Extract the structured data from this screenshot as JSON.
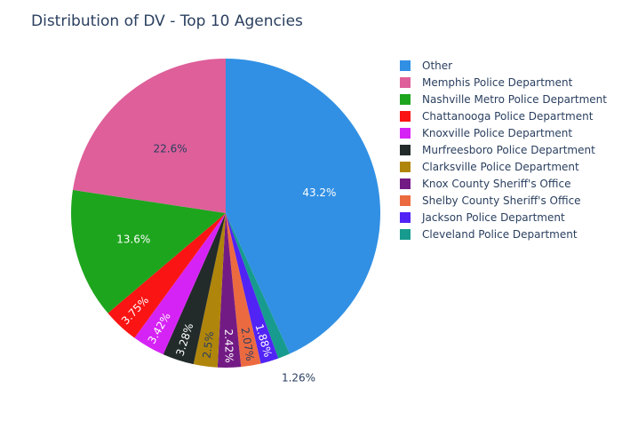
{
  "chart_data": {
    "type": "pie",
    "title": "Distribution of DV - Top 10 Agencies",
    "slices": [
      {
        "name": "Other",
        "value": 43.2,
        "label": "43.2%",
        "color": "#3190e4",
        "text_color": "#ffffff"
      },
      {
        "name": "Cleveland Police Department",
        "value": 1.26,
        "label": "1.26%",
        "color": "#179b8e",
        "text_color": "#2a3f5f"
      },
      {
        "name": "Jackson Police Department",
        "value": 1.88,
        "label": "1.88%",
        "color": "#5123f5",
        "text_color": "#ffffff"
      },
      {
        "name": "Shelby County Sheriff's Office",
        "value": 2.07,
        "label": "2.07%",
        "color": "#ec6a40",
        "text_color": "#2a3f5f"
      },
      {
        "name": "Knox County Sheriff's Office",
        "value": 2.42,
        "label": "2.42%",
        "color": "#731b84",
        "text_color": "#ffffff"
      },
      {
        "name": "Clarksville Police Department",
        "value": 2.5,
        "label": "2.5%",
        "color": "#b0850b",
        "text_color": "#2a3f5f"
      },
      {
        "name": "Murfreesboro Police Department",
        "value": 3.28,
        "label": "3.28%",
        "color": "#222a2a",
        "text_color": "#ffffff"
      },
      {
        "name": "Knoxville Police Department",
        "value": 3.42,
        "label": "3.42%",
        "color": "#d623f5",
        "text_color": "#ffffff"
      },
      {
        "name": "Chattanooga Police Department",
        "value": 3.75,
        "label": "3.75%",
        "color": "#fa1414",
        "text_color": "#ffffff"
      },
      {
        "name": "Nashville Metro Police Department",
        "value": 13.6,
        "label": "13.6%",
        "color": "#1ea51e",
        "text_color": "#ffffff"
      },
      {
        "name": "Memphis Police Department",
        "value": 22.6,
        "label": "22.6%",
        "color": "#de5f9a",
        "text_color": "#2a3f5f"
      }
    ],
    "legend": {
      "placement": "top-right",
      "items": [
        {
          "name": "Other",
          "color": "#3190e4"
        },
        {
          "name": "Memphis Police Department",
          "color": "#de5f9a"
        },
        {
          "name": "Nashville Metro Police Department",
          "color": "#1ea51e"
        },
        {
          "name": "Chattanooga Police Department",
          "color": "#fa1414"
        },
        {
          "name": "Knoxville Police Department",
          "color": "#d623f5"
        },
        {
          "name": "Murfreesboro Police Department",
          "color": "#222a2a"
        },
        {
          "name": "Clarksville Police Department",
          "color": "#b0850b"
        },
        {
          "name": "Knox County Sheriff's Office",
          "color": "#731b84"
        },
        {
          "name": "Shelby County Sheriff's Office",
          "color": "#ec6a40"
        },
        {
          "name": "Jackson Police Department",
          "color": "#5123f5"
        },
        {
          "name": "Cleveland Police Department",
          "color": "#179b8e"
        }
      ]
    }
  }
}
